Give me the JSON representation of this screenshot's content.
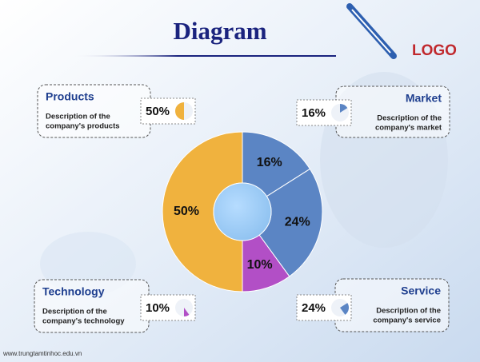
{
  "chart_data": {
    "type": "donut",
    "title": "Diagram",
    "logo": "LOGO",
    "footer": "www.trungtamtinhoc.edu.vn",
    "categories": [
      "Market",
      "Service",
      "Technology",
      "Products"
    ],
    "descriptions": [
      [
        "Description of the",
        "company's market"
      ],
      [
        "Description of the",
        "company's service"
      ],
      [
        "Description of the",
        "company's technology"
      ],
      [
        "Description of the",
        "company's products"
      ]
    ],
    "values": [
      16,
      24,
      10,
      50
    ],
    "value_labels": [
      "16%",
      "24%",
      "10%",
      "50%"
    ],
    "colors": [
      "#5b85c4",
      "#5b85c4",
      "#b24fc6",
      "#f0b23e"
    ]
  }
}
